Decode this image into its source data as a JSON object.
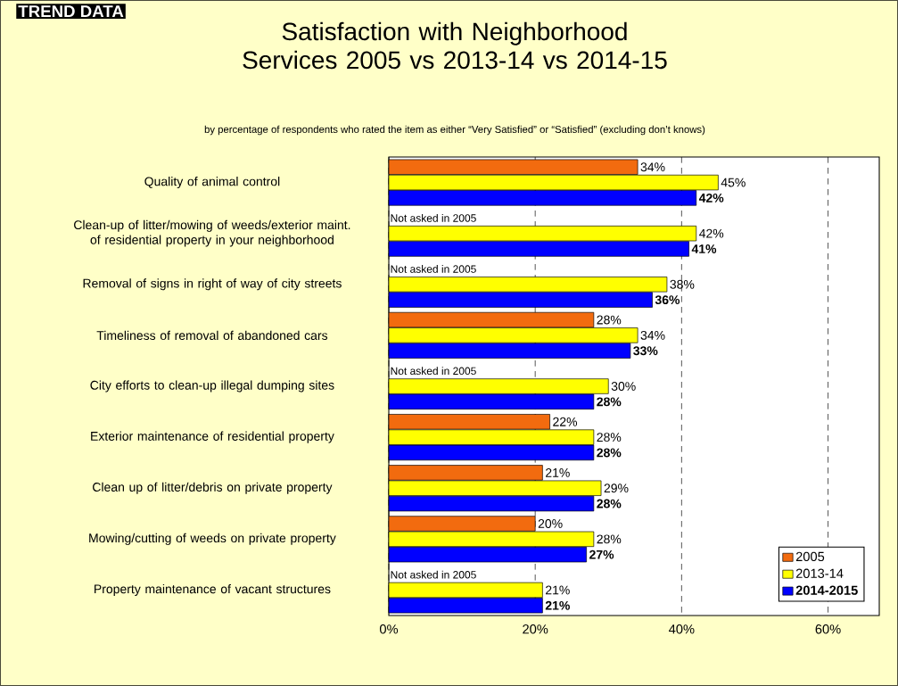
{
  "chart_data": {
    "type": "bar",
    "orientation": "horizontal",
    "title": "Satisfaction with Neighborhood Services 2005 vs 2013-14 vs 2014-15",
    "subtitle": "by percentage of respondents who rated the item as either “Very Satisfied” or “Satisfied” (excluding don’t knows)",
    "categories": [
      "Quality of animal control",
      "Clean-up of litter/mowing of weeds/exterior maint. of residential property in your neighborhood",
      "Removal of signs in right of way of city streets",
      "Timeliness of removal of abandoned cars",
      "City efforts to clean-up illegal dumping sites",
      "Exterior maintenance of residential property",
      "Clean up of litter/debris on private property",
      "Mowing/cutting of weeds on private property",
      "Property maintenance of vacant structures"
    ],
    "series": [
      {
        "name": "2005",
        "color": "#f26b0f",
        "values": [
          34,
          null,
          null,
          28,
          null,
          22,
          21,
          20,
          null
        ],
        "value_labels": [
          "34%",
          "Not asked in 2005",
          "Not asked in 2005",
          "28%",
          "Not asked in 2005",
          "22%",
          "21%",
          "20%",
          "Not asked in 2005"
        ]
      },
      {
        "name": "2013-14",
        "color": "#ffff00",
        "values": [
          45,
          42,
          38,
          34,
          30,
          28,
          29,
          28,
          21
        ],
        "value_labels": [
          "45%",
          "42%",
          "38%",
          "34%",
          "30%",
          "28%",
          "29%",
          "28%",
          "21%"
        ]
      },
      {
        "name": "2014-2015",
        "color": "#0000ff",
        "values": [
          42,
          41,
          36,
          33,
          28,
          28,
          28,
          27,
          21
        ],
        "value_labels": [
          "**42%**",
          "**41%**",
          "**36%**",
          "**33%**",
          "**28%**",
          "**28%**",
          "**28%**",
          "**27%**",
          "**21%**"
        ]
      }
    ],
    "xlim": [
      0,
      67
    ],
    "xticks": [
      {
        "value": 0,
        "label": "0%"
      },
      {
        "value": 20,
        "label": "20%"
      },
      {
        "value": 40,
        "label": "40%"
      },
      {
        "value": 60,
        "label": "60%"
      }
    ],
    "grid": "x",
    "legend": "bottom right",
    "annotations": [
      "TREND DATA"
    ]
  }
}
